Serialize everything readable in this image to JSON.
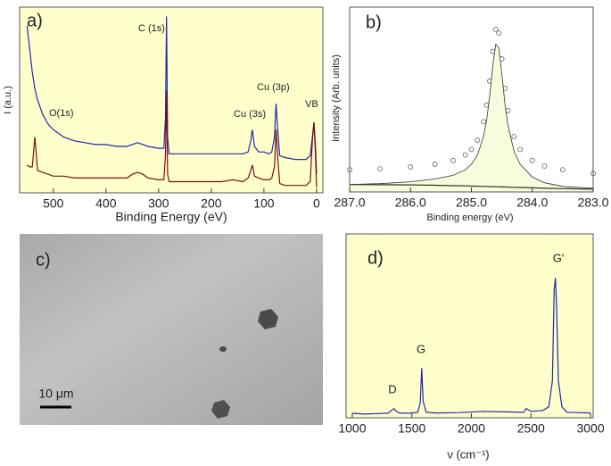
{
  "chart_data": [
    {
      "type": "line",
      "panel_label": "a)",
      "xlabel": "Binding Energy (eV)",
      "ylabel": "I (a.u.)",
      "annotations": [
        "C (1s)",
        "O(1s)",
        "Cu (3s)",
        "Cu (3p)",
        "VB"
      ],
      "plot_background": "#ffffcc",
      "xlim": [
        564,
        -12
      ],
      "ylim": [
        0,
        100
      ],
      "xticks": [
        500,
        400,
        300,
        200,
        100,
        0
      ],
      "x": [
        550,
        545,
        540,
        535,
        530,
        520,
        510,
        500,
        480,
        460,
        440,
        420,
        400,
        380,
        360,
        350,
        340,
        330,
        320,
        300,
        290,
        287,
        285,
        283,
        280,
        270,
        250,
        230,
        200,
        180,
        160,
        140,
        130,
        125,
        122,
        118,
        110,
        100,
        90,
        85,
        80,
        77,
        74,
        70,
        60,
        40,
        20,
        12,
        8,
        5,
        2,
        0
      ],
      "series": [
        {
          "color": "#1f2aa8",
          "style": "line",
          "values": [
            90,
            78,
            65,
            56,
            50,
            42,
            37,
            34,
            30,
            28,
            27,
            26,
            26,
            25,
            25,
            26,
            27,
            26,
            25,
            24,
            24,
            40,
            95,
            30,
            21,
            21,
            21,
            21,
            21,
            21,
            21,
            21,
            22,
            28,
            34,
            25,
            22,
            22,
            21,
            22,
            30,
            48,
            35,
            20,
            19,
            18,
            18,
            20,
            30,
            38,
            25,
            10
          ]
        },
        {
          "color": "#7a1010",
          "style": "line",
          "values": [
            15,
            14,
            14,
            30,
            12,
            11,
            10,
            9,
            9,
            8,
            8,
            8,
            8,
            8,
            8,
            10,
            11,
            10,
            8,
            7,
            7,
            20,
            55,
            10,
            6,
            6,
            6,
            6,
            6,
            6,
            7,
            6,
            8,
            12,
            15,
            9,
            8,
            7,
            7,
            8,
            14,
            34,
            20,
            5,
            4,
            4,
            4,
            6,
            28,
            38,
            20,
            3
          ]
        }
      ]
    },
    {
      "type": "line",
      "panel_label": "b)",
      "xlabel": "Binding energy (eV)",
      "ylabel": "Intensity (Arb. units)",
      "plot_background": "#ffffff",
      "xlim": [
        287,
        283
      ],
      "ylim": [
        0,
        100
      ],
      "xticks": [
        {
          "value": 287,
          "label": "287.0"
        },
        {
          "value": 286,
          "label": "286.0"
        },
        {
          "value": 285,
          "label": "285.0"
        },
        {
          "value": 284,
          "label": "284.0"
        },
        {
          "value": 283,
          "label": "283.0"
        }
      ],
      "x": [
        287.0,
        286.5,
        286.0,
        285.6,
        285.3,
        285.1,
        285.0,
        284.9,
        284.8,
        284.75,
        284.7,
        284.65,
        284.6,
        284.55,
        284.5,
        284.45,
        284.4,
        284.3,
        284.2,
        284.0,
        283.8,
        283.5,
        283.0
      ],
      "series": [
        {
          "color": "#666666",
          "style": "markers",
          "values": [
            12,
            12.5,
            13.5,
            15,
            17,
            20,
            23,
            28,
            38,
            47,
            60,
            76,
            88,
            86,
            72,
            56,
            44,
            30,
            23,
            17,
            14,
            12,
            10
          ]
        },
        {
          "color": "#333333",
          "style": "area",
          "fill": "#f8fbdc",
          "values": [
            4,
            4.5,
            5.5,
            7,
            9,
            12,
            15,
            20,
            30,
            39,
            52,
            68,
            80,
            78,
            64,
            48,
            36,
            22,
            15,
            8,
            5,
            3,
            2
          ]
        },
        {
          "color": "#333333",
          "style": "line",
          "values": [
            4,
            3.9,
            3.8,
            3.6,
            3.4,
            3.3,
            3.2,
            3.1,
            3,
            3,
            2.9,
            2.9,
            2.8,
            2.8,
            2.7,
            2.7,
            2.6,
            2.5,
            2.4,
            2.2,
            2,
            1.8,
            1.5
          ]
        }
      ]
    },
    {
      "type": "line",
      "panel_label": "d)",
      "xlabel": "ν (cm⁻¹)",
      "annotations": [
        "D",
        "G",
        "G'"
      ],
      "plot_background": "#ffffcc",
      "xlim": [
        948,
        3022
      ],
      "ylim": [
        0,
        100
      ],
      "xticks": [
        1000,
        1500,
        2000,
        2500,
        3000
      ],
      "x": [
        1000,
        1100,
        1200,
        1300,
        1330,
        1350,
        1370,
        1400,
        1500,
        1550,
        1570,
        1583,
        1595,
        1620,
        1700,
        1900,
        2100,
        2300,
        2440,
        2460,
        2500,
        2600,
        2650,
        2680,
        2695,
        2705,
        2715,
        2730,
        2760,
        2800,
        2900,
        3000
      ],
      "series": [
        {
          "color": "#1f2aa8",
          "style": "line",
          "values": [
            2.5,
            2,
            2.3,
            2.5,
            4,
            5,
            3.5,
            2.5,
            2.6,
            3,
            8,
            27,
            9,
            3,
            2.6,
            2.8,
            3.5,
            3.2,
            3,
            5,
            3.5,
            4,
            6,
            20,
            70,
            76,
            60,
            20,
            6,
            3,
            2.8,
            2.6
          ]
        }
      ]
    }
  ],
  "image": {
    "panel_label": "c)",
    "scale_bar": "10 μm"
  }
}
